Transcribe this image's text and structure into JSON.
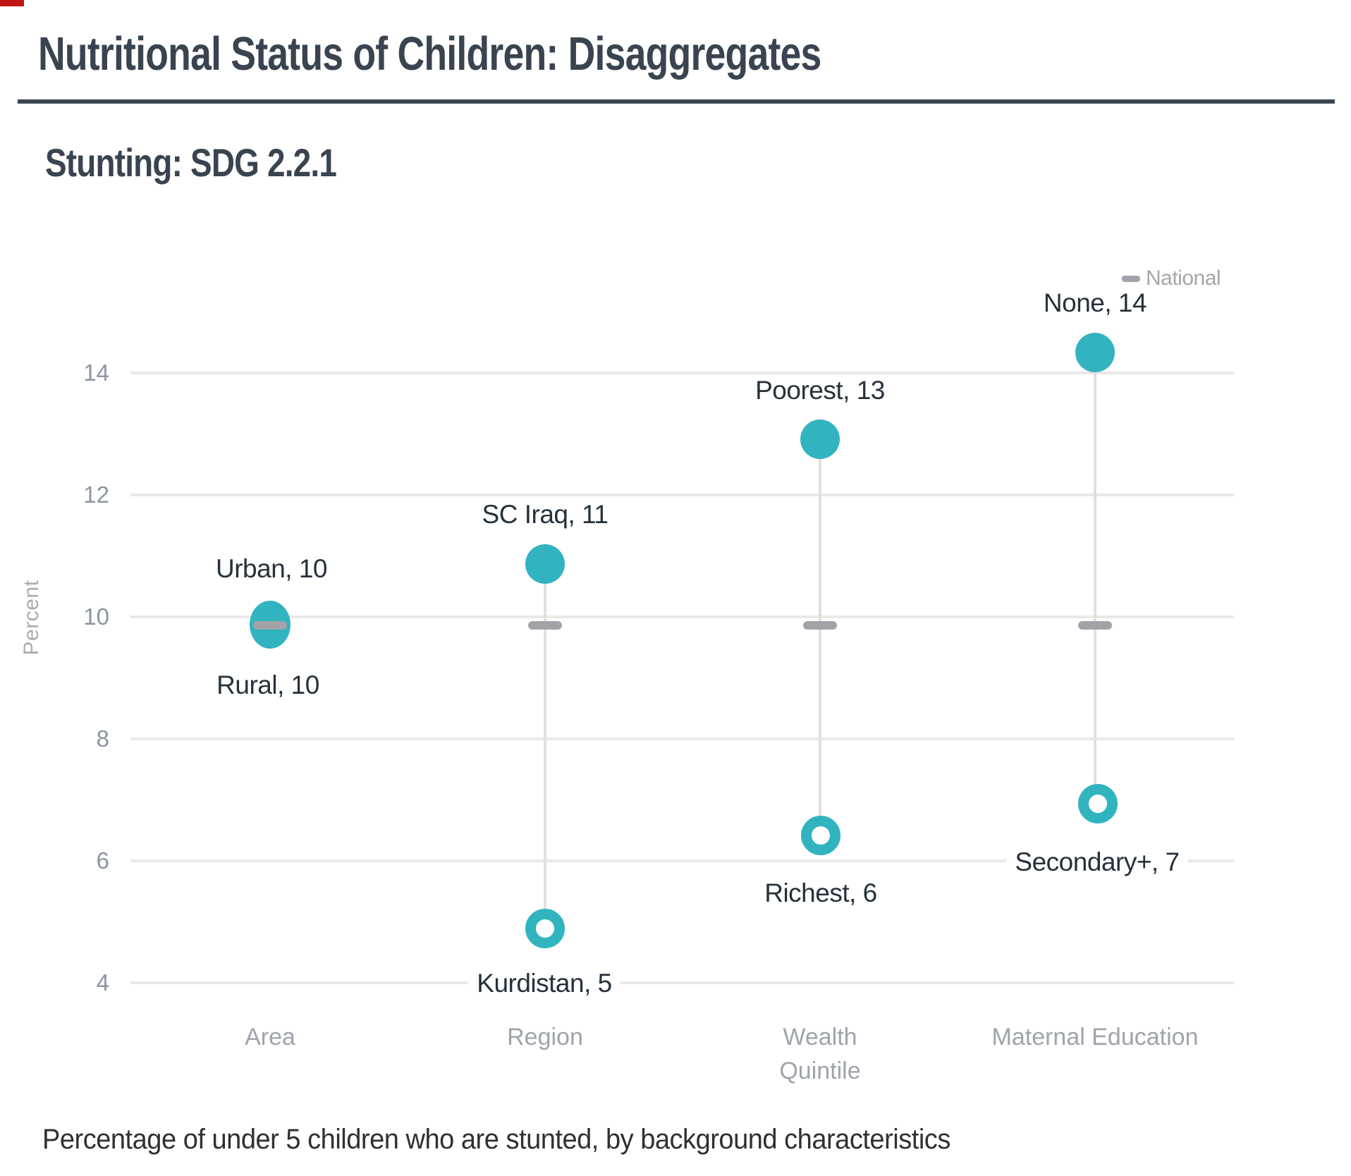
{
  "header": {
    "title": "Nutritional Status of Children: Disaggregates",
    "subtitle": "Stunting: SDG 2.2.1"
  },
  "legend": {
    "national_label": "National"
  },
  "chart_data": {
    "type": "scatter",
    "subtype": "dumbbell-dot-plot",
    "title": "Stunting: SDG 2.2.1",
    "ylabel": "Percent",
    "ylim": [
      4,
      15
    ],
    "yticks": [
      14,
      12,
      10,
      8,
      6,
      4
    ],
    "grid": "horizontal",
    "legend_position": "top-right",
    "national_reference_value": 9.9,
    "categories": [
      "Area",
      "Region",
      "Wealth Quintile",
      "Maternal Education"
    ],
    "points": [
      {
        "category": "Area",
        "name": "Urban",
        "value": 10,
        "label": "Urban, 10",
        "marker": "filled"
      },
      {
        "category": "Area",
        "name": "Rural",
        "value": 10,
        "label": "Rural, 10",
        "marker": "filled"
      },
      {
        "category": "Region",
        "name": "SC Iraq",
        "value": 11,
        "label": "SC Iraq, 11",
        "marker": "filled"
      },
      {
        "category": "Region",
        "name": "Kurdistan",
        "value": 5,
        "label": "Kurdistan, 5",
        "marker": "open"
      },
      {
        "category": "Wealth Quintile",
        "name": "Poorest",
        "value": 13,
        "label": "Poorest, 13",
        "marker": "filled"
      },
      {
        "category": "Wealth Quintile",
        "name": "Richest",
        "value": 6,
        "label": "Richest, 6",
        "marker": "open"
      },
      {
        "category": "Maternal Education",
        "name": "None",
        "value": 14,
        "label": "None, 14",
        "marker": "filled"
      },
      {
        "category": "Maternal Education",
        "name": "Secondary+",
        "value": 7,
        "label": "Secondary+, 7",
        "marker": "open"
      }
    ]
  },
  "caption": "Percentage of under 5 children who are stunted, by background characteristics",
  "colors": {
    "accent_teal": "#31b4c0",
    "national_gray": "#a2a3a8",
    "title_slate": "#3a4450",
    "gridline": "#e9e9e9"
  }
}
